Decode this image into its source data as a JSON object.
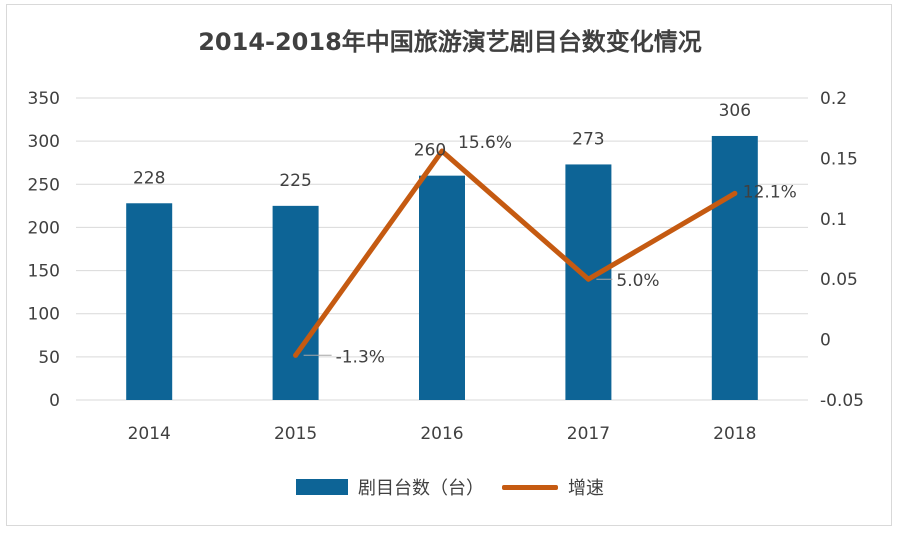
{
  "chart_data": {
    "type": "bar+line",
    "title": "2014-2018年中国旅游演艺剧目台数变化情况",
    "categories": [
      "2014",
      "2015",
      "2016",
      "2017",
      "2018"
    ],
    "series": [
      {
        "name": "剧目台数（台）",
        "type": "bar",
        "axis": "left",
        "values": [
          228,
          225,
          260,
          273,
          306
        ],
        "labels": [
          "228",
          "225",
          "260",
          "273",
          "306"
        ],
        "color": "#0d6496"
      },
      {
        "name": "增速",
        "type": "line",
        "axis": "right",
        "values": [
          null,
          -0.013,
          0.156,
          0.05,
          0.121
        ],
        "labels": [
          "",
          "-1.3%",
          "15.6%",
          "5.0%",
          "12.1%"
        ],
        "color": "#c55a11"
      }
    ],
    "y_left": {
      "min": 0,
      "max": 350,
      "ticks": [
        "0",
        "50",
        "100",
        "150",
        "200",
        "250",
        "300",
        "350"
      ]
    },
    "y_right": {
      "min": -0.05,
      "max": 0.2,
      "ticks": [
        "-0.05",
        "0",
        "0.05",
        "0.1",
        "0.15",
        "0.2"
      ]
    },
    "grid": true,
    "legend_position": "bottom"
  },
  "colors": {
    "bar": "#0d6496",
    "line": "#c55a11",
    "grid": "#d9d9d9",
    "text": "#404040"
  }
}
